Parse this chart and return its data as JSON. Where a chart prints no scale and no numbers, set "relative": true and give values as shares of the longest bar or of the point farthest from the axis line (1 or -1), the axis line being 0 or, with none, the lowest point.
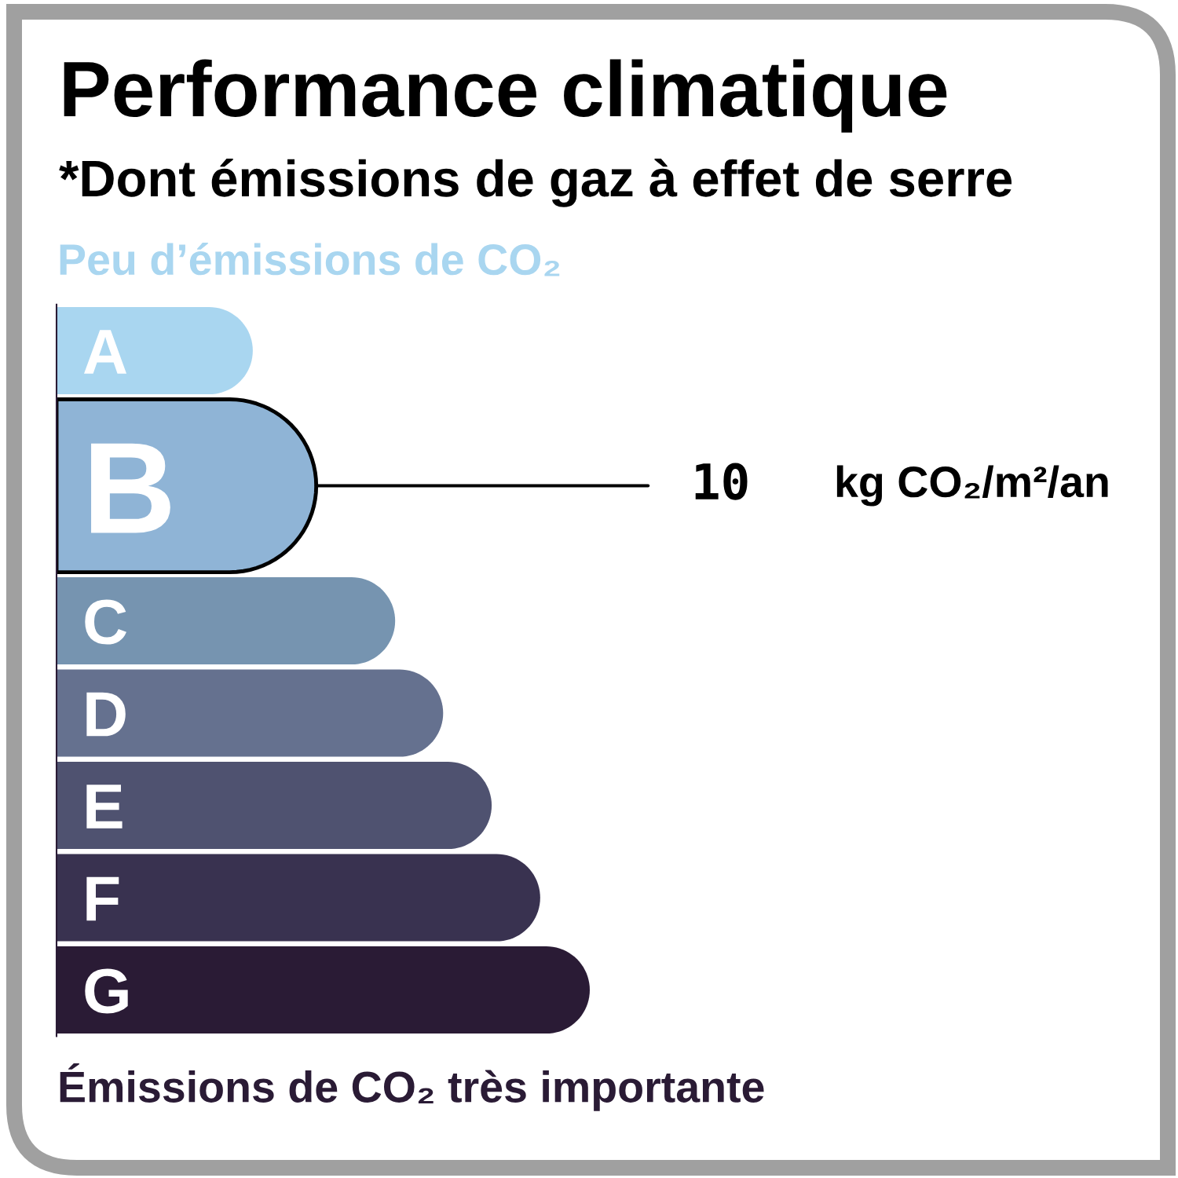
{
  "chart_data": {
    "type": "bar",
    "orientation": "horizontal",
    "relative": true,
    "title": "Performance climatique",
    "subtitle": "*Dont émissions de gaz à effet de serre",
    "categories": [
      "A",
      "B",
      "C",
      "D",
      "E",
      "F",
      "G"
    ],
    "values": [
      0.368,
      0.487,
      0.635,
      0.725,
      0.816,
      0.907,
      1
    ],
    "colors": [
      "#a9d6f0",
      "#8fb4d6",
      "#7694b0",
      "#65718f",
      "#4f5270",
      "#393250",
      "#2a1b35"
    ],
    "annotations": [
      "Peu d’émissions de CO₂",
      {
        "text": "10",
        "x": 0.487,
        "y": "B"
      },
      "kg CO₂/m²/an",
      "Émissions de CO₂ très importante"
    ]
  }
}
